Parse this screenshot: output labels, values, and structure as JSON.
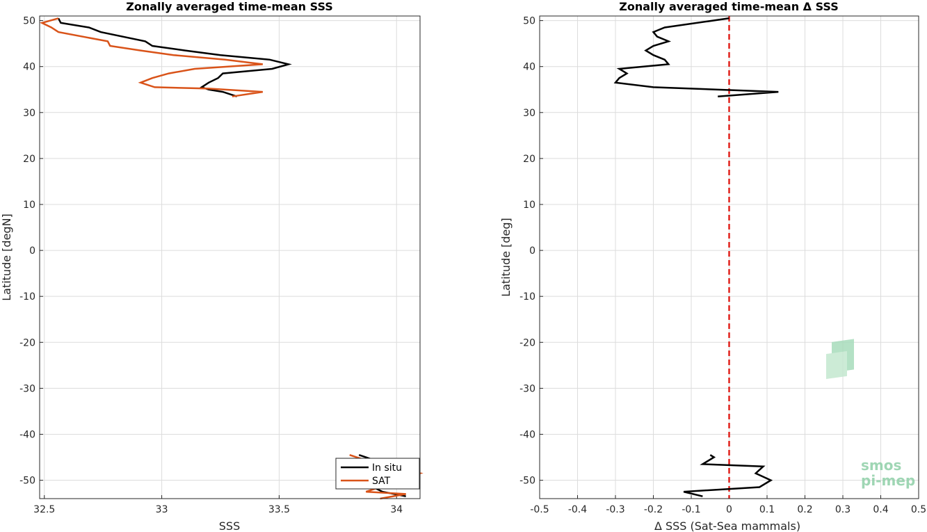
{
  "chart_data": [
    {
      "type": "line",
      "title": "Zonally averaged time-mean SSS",
      "xlabel": "SSS",
      "ylabel": "Latitude [degN]",
      "xlim": [
        32.48,
        34.1
      ],
      "ylim": [
        -54,
        51
      ],
      "xticks": [
        "32.5",
        "33",
        "33.5",
        "34"
      ],
      "xtick_values": [
        32.5,
        33,
        33.5,
        34
      ],
      "yticks": [
        "50",
        "40",
        "30",
        "20",
        "10",
        "0",
        "-10",
        "-20",
        "-30",
        "-40",
        "-50"
      ],
      "ytick_values": [
        50,
        40,
        30,
        20,
        10,
        0,
        -10,
        -20,
        -30,
        -40,
        -50
      ],
      "grid": true,
      "legend_position": "bottom-right",
      "series": [
        {
          "name": "In situ",
          "color": "#000000",
          "segments": [
            [
              [
                32.56,
                50.5
              ],
              [
                32.57,
                49.5
              ],
              [
                32.69,
                48.5
              ],
              [
                32.74,
                47.5
              ],
              [
                32.93,
                45.5
              ],
              [
                32.96,
                44.5
              ],
              [
                33.1,
                43.5
              ],
              [
                33.25,
                42.5
              ],
              [
                33.46,
                41.5
              ],
              [
                33.54,
                40.5
              ],
              [
                33.47,
                39.5
              ],
              [
                33.26,
                38.5
              ],
              [
                33.24,
                37.5
              ],
              [
                33.2,
                36.5
              ],
              [
                33.17,
                35.5
              ],
              [
                33.2,
                35.0
              ],
              [
                33.26,
                34.5
              ],
              [
                33.32,
                33.5
              ]
            ],
            [
              [
                33.84,
                -44.5
              ],
              [
                33.87,
                -45.0
              ],
              [
                33.98,
                -47.0
              ],
              [
                34.06,
                -48.5
              ],
              [
                33.97,
                -50.0
              ],
              [
                33.9,
                -51.5
              ],
              [
                33.94,
                -52.5
              ],
              [
                34.04,
                -53.5
              ]
            ]
          ]
        },
        {
          "name": "SAT",
          "color": "#d95319",
          "segments": [
            [
              [
                32.56,
                50.5
              ],
              [
                32.49,
                49.5
              ],
              [
                32.53,
                48.5
              ],
              [
                32.56,
                47.5
              ],
              [
                32.77,
                45.5
              ],
              [
                32.78,
                44.5
              ],
              [
                32.91,
                43.5
              ],
              [
                33.05,
                42.5
              ],
              [
                33.27,
                41.5
              ],
              [
                33.43,
                40.5
              ],
              [
                33.14,
                39.5
              ],
              [
                33.03,
                38.5
              ],
              [
                32.96,
                37.5
              ],
              [
                32.91,
                36.5
              ],
              [
                32.97,
                35.5
              ],
              [
                33.2,
                35.2
              ],
              [
                33.43,
                34.5
              ],
              [
                33.3,
                33.5
              ]
            ],
            [
              [
                33.8,
                -44.5
              ],
              [
                33.95,
                -47.0
              ],
              [
                34.1,
                -48.5
              ],
              [
                33.96,
                -51.0
              ],
              [
                33.87,
                -52.5
              ],
              [
                34.04,
                -53.0
              ],
              [
                33.93,
                -54.0
              ]
            ]
          ]
        }
      ]
    },
    {
      "type": "line",
      "title": "Zonally averaged time-mean Δ SSS",
      "xlabel": "Δ SSS (Sat-Sea mammals)",
      "ylabel": "Latitude [deg]",
      "xlim": [
        -0.5,
        0.5
      ],
      "ylim": [
        -54,
        51
      ],
      "xticks": [
        "-0.5",
        "-0.4",
        "-0.3",
        "-0.2",
        "-0.1",
        "0",
        "0.1",
        "0.2",
        "0.3",
        "0.4",
        "0.5"
      ],
      "xtick_values": [
        -0.5,
        -0.4,
        -0.3,
        -0.2,
        -0.1,
        0,
        0.1,
        0.2,
        0.3,
        0.4,
        0.5
      ],
      "yticks": [
        "50",
        "40",
        "30",
        "20",
        "10",
        "0",
        "-10",
        "-20",
        "-30",
        "-40",
        "-50"
      ],
      "ytick_values": [
        50,
        40,
        30,
        20,
        10,
        0,
        -10,
        -20,
        -30,
        -40,
        -50
      ],
      "grid": true,
      "reference_line": {
        "x": 0,
        "color": "#e0201b",
        "style": "dashed"
      },
      "series": [
        {
          "color": "#000000",
          "segments": [
            [
              [
                0.0,
                50.5
              ],
              [
                -0.17,
                48.5
              ],
              [
                -0.2,
                47.5
              ],
              [
                -0.19,
                46.5
              ],
              [
                -0.16,
                45.5
              ],
              [
                -0.2,
                44.5
              ],
              [
                -0.22,
                43.5
              ],
              [
                -0.2,
                42.5
              ],
              [
                -0.17,
                41.5
              ],
              [
                -0.16,
                40.5
              ],
              [
                -0.29,
                39.5
              ],
              [
                -0.27,
                38.5
              ],
              [
                -0.29,
                37.5
              ],
              [
                -0.3,
                36.5
              ],
              [
                -0.2,
                35.5
              ],
              [
                0.13,
                34.5
              ],
              [
                -0.03,
                33.5
              ]
            ],
            [
              [
                -0.05,
                -44.5
              ],
              [
                -0.04,
                -45.0
              ],
              [
                -0.07,
                -46.5
              ],
              [
                0.09,
                -47.0
              ],
              [
                0.07,
                -48.5
              ],
              [
                0.11,
                -50.0
              ],
              [
                0.08,
                -51.5
              ],
              [
                -0.12,
                -52.5
              ],
              [
                -0.07,
                -53.5
              ]
            ]
          ]
        }
      ]
    }
  ],
  "legend": {
    "items": [
      {
        "label": "In situ",
        "color": "#000000"
      },
      {
        "label": "SAT",
        "color": "#d95319"
      }
    ]
  },
  "logo": {
    "line1": "smos",
    "line2": "pi-mep"
  }
}
